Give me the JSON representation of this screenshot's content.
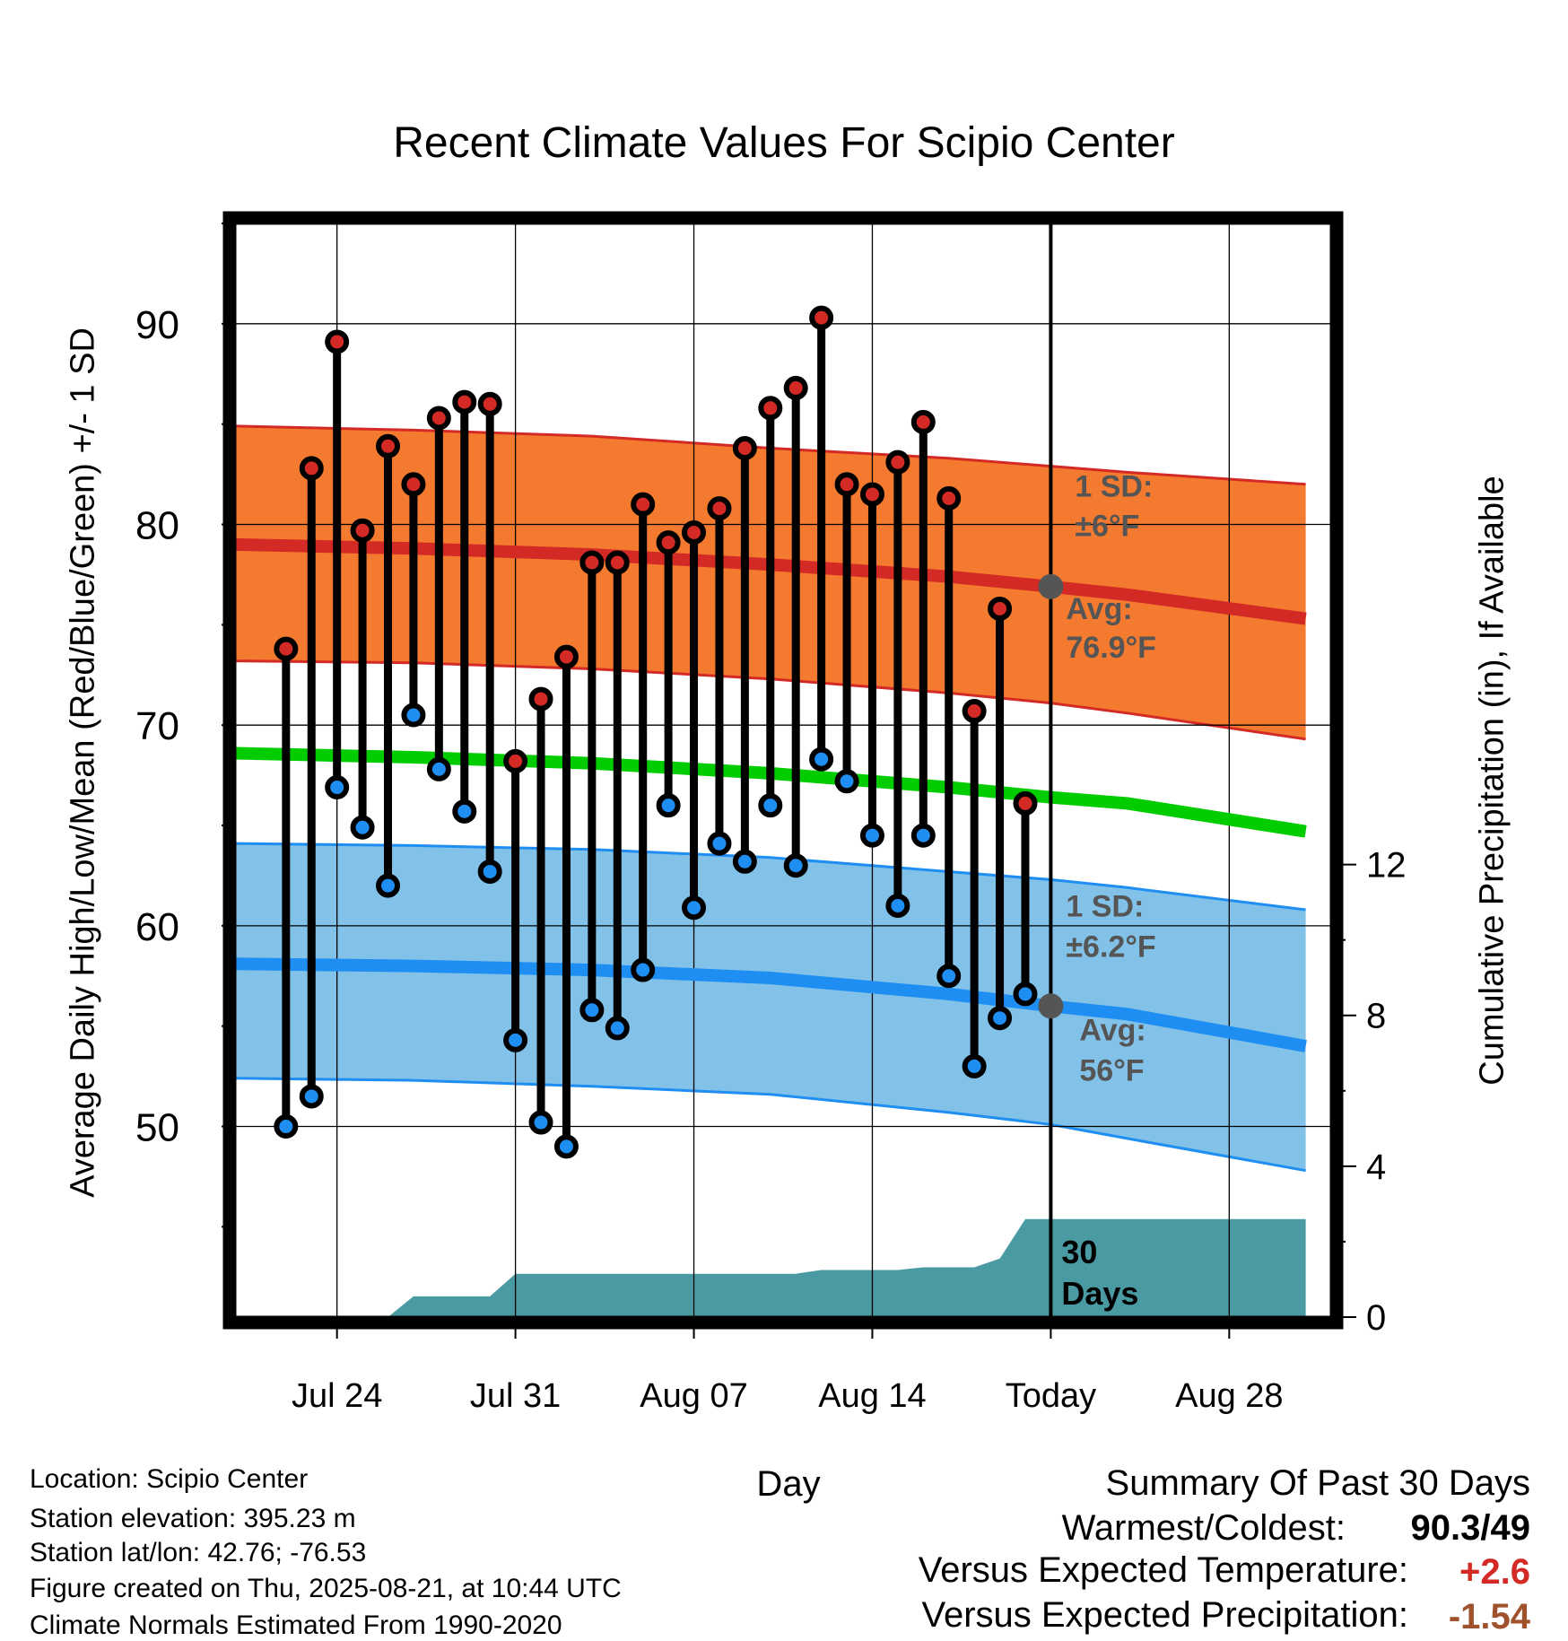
{
  "title": "Recent Climate Values For Scipio Center",
  "colors": {
    "high_band": "#f47a30",
    "high_avg": "#d42a25",
    "low_band": "#82c2e8",
    "low_avg": "#1f8ef2",
    "mean": "#00cc00",
    "precip": "#4a9aa3",
    "high_dot": "#d42a25",
    "low_dot": "#1f8ef2",
    "marker": "#555555",
    "annotation": "#555555",
    "warm_value": "#d42a25",
    "precip_value": "#a0522d"
  },
  "chart_data": {
    "type": "line",
    "title": "Recent Climate Values For Scipio Center",
    "xlabel": "Day",
    "ylabel": "Average Daily High/Low/Mean (Red/Blue/Green) +/- 1 SD",
    "y2label": "Cumulative Precipitation (in), If Available",
    "ylim": [
      40.5,
      95
    ],
    "y2lim": [
      0,
      29
    ],
    "xlim": [
      "2025-07-20",
      "2025-09-01"
    ],
    "x_ticks": [
      {
        "date": "2025-07-24",
        "label": "Jul 24"
      },
      {
        "date": "2025-07-31",
        "label": "Jul 31"
      },
      {
        "date": "2025-08-07",
        "label": "Aug 07"
      },
      {
        "date": "2025-08-14",
        "label": "Aug 14"
      },
      {
        "date": "2025-08-21",
        "label": "Today"
      },
      {
        "date": "2025-08-28",
        "label": "Aug 28"
      }
    ],
    "y_ticks": [
      50,
      60,
      70,
      80,
      90
    ],
    "y2_ticks": [
      0,
      4,
      8,
      12
    ],
    "grid": true,
    "today": "2025-08-21",
    "days": [
      "2025-07-22",
      "2025-07-23",
      "2025-07-24",
      "2025-07-25",
      "2025-07-26",
      "2025-07-27",
      "2025-07-28",
      "2025-07-29",
      "2025-07-30",
      "2025-07-31",
      "2025-08-01",
      "2025-08-02",
      "2025-08-03",
      "2025-08-04",
      "2025-08-05",
      "2025-08-06",
      "2025-08-07",
      "2025-08-08",
      "2025-08-09",
      "2025-08-10",
      "2025-08-11",
      "2025-08-12",
      "2025-08-13",
      "2025-08-14",
      "2025-08-15",
      "2025-08-16",
      "2025-08-17",
      "2025-08-18",
      "2025-08-19",
      "2025-08-20"
    ],
    "highs": [
      73.8,
      82.8,
      89.1,
      79.7,
      83.9,
      82.0,
      85.3,
      86.1,
      86.0,
      68.2,
      71.3,
      73.4,
      78.1,
      78.1,
      81.0,
      79.1,
      79.6,
      80.8,
      83.8,
      85.8,
      86.8,
      90.3,
      82.0,
      81.5,
      83.1,
      85.1,
      81.3,
      70.7,
      75.8,
      66.1
    ],
    "lows": [
      50.0,
      51.5,
      66.9,
      64.9,
      62.0,
      70.5,
      67.8,
      65.7,
      62.7,
      54.3,
      50.2,
      49.0,
      55.8,
      54.9,
      57.8,
      66.0,
      60.9,
      64.1,
      63.2,
      66.0,
      63.0,
      68.3,
      67.2,
      64.5,
      61.0,
      64.5,
      57.5,
      53.0,
      55.4,
      56.6
    ],
    "normals": {
      "x": [
        "2025-07-20",
        "2025-07-27",
        "2025-08-03",
        "2025-08-10",
        "2025-08-17",
        "2025-08-21",
        "2025-08-24",
        "2025-08-31"
      ],
      "high_avg": [
        79.0,
        78.8,
        78.5,
        78.0,
        77.4,
        76.9,
        76.5,
        75.3
      ],
      "high_sd_upper": [
        84.9,
        84.7,
        84.4,
        83.8,
        83.3,
        82.9,
        82.6,
        82.0
      ],
      "high_sd_lower": [
        73.2,
        73.1,
        72.8,
        72.3,
        71.6,
        71.1,
        70.6,
        69.3
      ],
      "low_avg": [
        58.1,
        58.0,
        57.8,
        57.4,
        56.6,
        56.0,
        55.6,
        54.0
      ],
      "low_sd_upper": [
        64.1,
        64.0,
        63.8,
        63.4,
        62.7,
        62.3,
        61.9,
        60.8
      ],
      "low_sd_lower": [
        52.4,
        52.3,
        52.0,
        51.6,
        50.7,
        50.1,
        49.4,
        47.8
      ],
      "mean": [
        68.6,
        68.4,
        68.1,
        67.6,
        66.9,
        66.4,
        66.1,
        64.7
      ]
    },
    "precip": {
      "x": [
        "2025-07-22",
        "2025-07-24",
        "2025-07-26",
        "2025-07-27",
        "2025-07-30",
        "2025-07-31",
        "2025-08-11",
        "2025-08-12",
        "2025-08-15",
        "2025-08-16",
        "2025-08-18",
        "2025-08-19",
        "2025-08-20",
        "2025-08-31"
      ],
      "y": [
        0,
        0,
        0,
        0.55,
        0.55,
        1.15,
        1.15,
        1.25,
        1.25,
        1.32,
        1.32,
        1.55,
        2.6,
        2.6
      ]
    },
    "annotations": {
      "high_sd": [
        "1 SD:",
        "±6°F"
      ],
      "high_avg": [
        "Avg:",
        "76.9°F"
      ],
      "low_sd": [
        "1 SD:",
        "±6.2°F"
      ],
      "low_avg": [
        "Avg:",
        "56°F"
      ],
      "window": [
        "30",
        "Days"
      ]
    }
  },
  "footer": {
    "location": "Location: Scipio Center",
    "elevation": "Station elevation: 395.23 m",
    "latlon": "Station lat/lon: 42.76; -76.53",
    "created": "Figure created on Thu, 2025-08-21, at 10:44 UTC",
    "normals": "Climate Normals Estimated From 1990-2020"
  },
  "summary": {
    "heading": "Summary Of Past 30 Days",
    "warmest_label": "Warmest/Coldest:",
    "warmest_value": "90.3/49",
    "temp_label": "Versus Expected Temperature:",
    "temp_value": "+2.6",
    "precip_label": "Versus Expected Precipitation:",
    "precip_value": "-1.54"
  }
}
